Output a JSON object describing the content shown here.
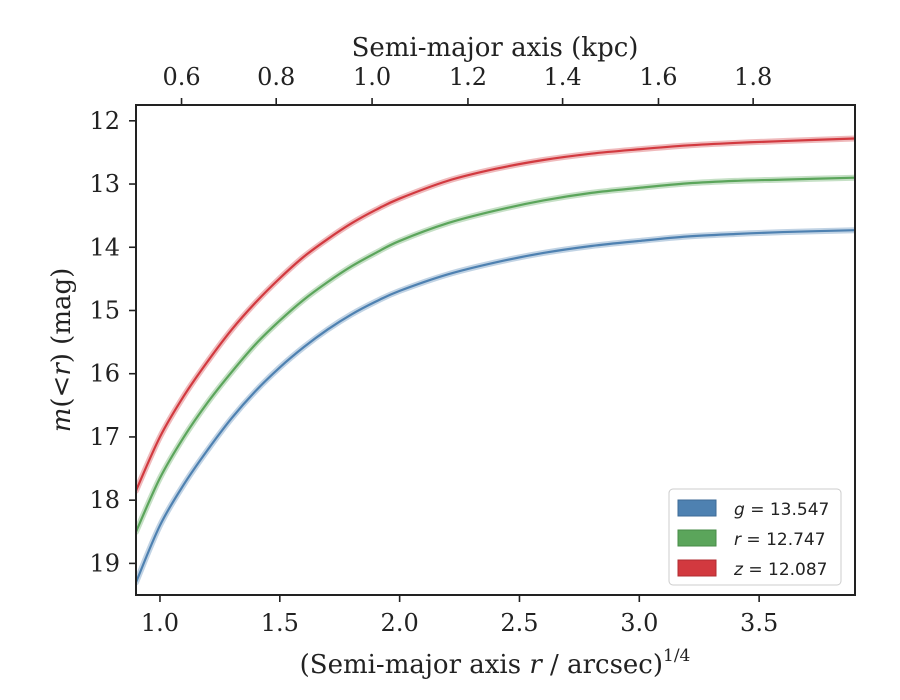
{
  "chart_data": {
    "type": "line",
    "title": "",
    "xlabel_main": "(Semi-major axis ",
    "xlabel_var": "r",
    "xlabel_tail": " / arcsec)",
    "xlabel_sup": "1/4",
    "top_xlabel": "Semi-major axis (kpc)",
    "ylabel_m": "m",
    "ylabel_open": "(<",
    "ylabel_var": "r",
    "ylabel_close": ") (mag)",
    "xlim": [
      0.9,
      3.9
    ],
    "ylim": [
      19.5,
      11.75
    ],
    "y_inverted": true,
    "xticks": [
      1.0,
      1.5,
      2.0,
      2.5,
      3.0,
      3.5
    ],
    "xtick_labels": [
      "1.0",
      "1.5",
      "2.0",
      "2.5",
      "3.0",
      "3.5"
    ],
    "yticks": [
      12,
      13,
      14,
      15,
      16,
      17,
      18,
      19
    ],
    "ytick_labels": [
      "12",
      "13",
      "14",
      "15",
      "16",
      "17",
      "18",
      "19"
    ],
    "top_ticks_kpc": [
      0.6,
      0.8,
      1.0,
      1.2,
      1.4,
      1.6,
      1.8
    ],
    "top_tick_labels": [
      "0.6",
      "0.8",
      "1.0",
      "1.2",
      "1.4",
      "1.6",
      "1.8"
    ],
    "top_tick_x_positions": [
      1.09,
      1.485,
      1.885,
      2.285,
      2.68,
      3.08,
      3.475
    ],
    "grid": false,
    "legend_position": "lower-right",
    "x": [
      0.9,
      1.0,
      1.1,
      1.2,
      1.3,
      1.4,
      1.5,
      1.6,
      1.7,
      1.8,
      1.9,
      2.0,
      2.2,
      2.4,
      2.6,
      2.8,
      3.0,
      3.2,
      3.4,
      3.6,
      3.9
    ],
    "series": [
      {
        "name": "g = 13.547",
        "var": "g",
        "val": "13.547",
        "color": "#4e81b1",
        "values": [
          19.3,
          18.4,
          17.75,
          17.2,
          16.7,
          16.27,
          15.9,
          15.58,
          15.3,
          15.06,
          14.86,
          14.69,
          14.43,
          14.24,
          14.09,
          13.98,
          13.9,
          13.83,
          13.79,
          13.76,
          13.73
        ]
      },
      {
        "name": "r = 12.747",
        "var": "r",
        "val": "12.747",
        "color": "#5ba55b",
        "values": [
          18.5,
          17.65,
          17.0,
          16.45,
          15.97,
          15.53,
          15.16,
          14.83,
          14.55,
          14.3,
          14.09,
          13.9,
          13.62,
          13.42,
          13.26,
          13.14,
          13.06,
          12.99,
          12.95,
          12.93,
          12.9
        ]
      },
      {
        "name": "z = 12.087",
        "var": "z",
        "val": "12.087",
        "color": "#d2393f",
        "values": [
          17.85,
          17.0,
          16.35,
          15.8,
          15.3,
          14.87,
          14.49,
          14.15,
          13.87,
          13.62,
          13.41,
          13.23,
          12.95,
          12.76,
          12.62,
          12.52,
          12.45,
          12.39,
          12.35,
          12.32,
          12.28
        ]
      }
    ]
  }
}
